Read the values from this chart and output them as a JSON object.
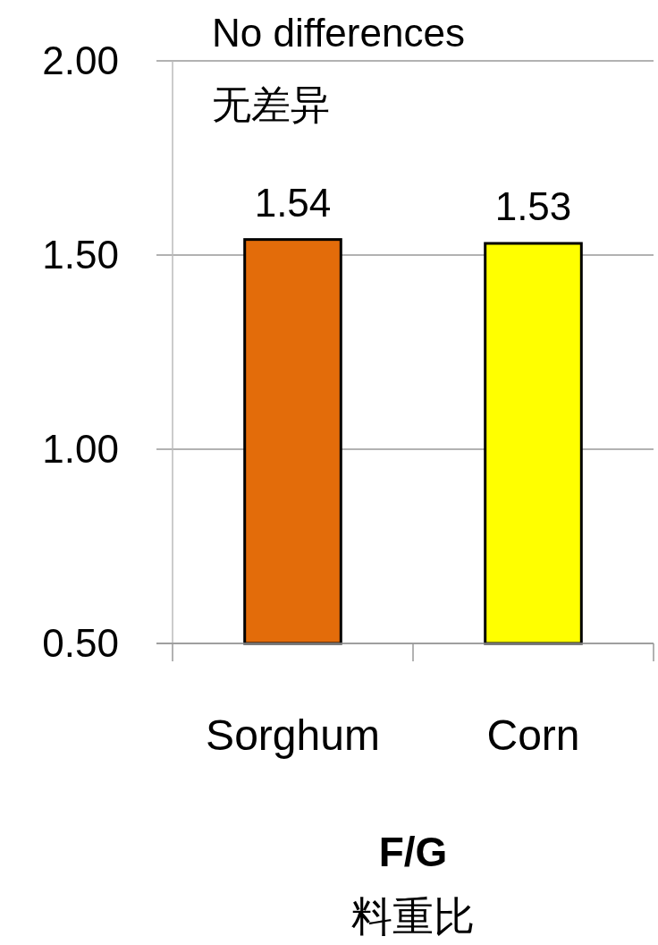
{
  "chart_data": {
    "type": "bar",
    "categories": [
      "Sorghum",
      "Corn"
    ],
    "values": [
      1.54,
      1.53
    ],
    "colors": [
      "#e36c0a",
      "#ffff00"
    ],
    "ylim": [
      0.5,
      2.0
    ],
    "yticks": [
      {
        "value": 0.5,
        "label": "0.50"
      },
      {
        "value": 1.0,
        "label": "1.00"
      },
      {
        "value": 1.5,
        "label": "1.50"
      },
      {
        "value": 2.0,
        "label": "2.00"
      }
    ],
    "grid": "y",
    "data_labels": true,
    "xlabel": "F/G\n料重比",
    "annotations": [
      "No differences\n无差异"
    ]
  }
}
